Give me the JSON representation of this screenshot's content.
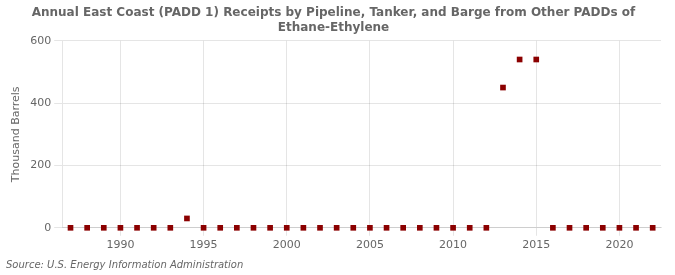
{
  "chart_data": {
    "type": "scatter",
    "title": "Annual East Coast (PADD 1) Receipts by Pipeline, Tanker, and Barge from Other PADDs of",
    "subtitle": "Ethane-Ethylene",
    "y_label": "Thousand Barrels",
    "annotation": "Source: U.S. Energy Information Administration",
    "x": [
      1987,
      1988,
      1989,
      1990,
      1991,
      1992,
      1993,
      1994,
      1995,
      1996,
      1997,
      1998,
      1999,
      2000,
      2001,
      2002,
      2003,
      2004,
      2005,
      2006,
      2007,
      2008,
      2009,
      2010,
      2011,
      2012,
      2013,
      2014,
      2015,
      2016,
      2017,
      2018,
      2019,
      2020,
      2021,
      2022
    ],
    "values": [
      0,
      0,
      0,
      0,
      0,
      0,
      0,
      30,
      0,
      0,
      0,
      0,
      0,
      0,
      0,
      0,
      0,
      0,
      0,
      0,
      0,
      0,
      0,
      0,
      0,
      0,
      450,
      540,
      540,
      0,
      0,
      0,
      0,
      0,
      0,
      0
    ],
    "color": "#8b0000",
    "marker": "square",
    "xlim": [
      1986.5,
      2022.5
    ],
    "xticks": [
      1990,
      1995,
      2000,
      2005,
      2010,
      2015,
      2020
    ],
    "ylim": [
      0,
      600
    ],
    "yticks": [
      0,
      200,
      400,
      600
    ],
    "grid": true
  }
}
